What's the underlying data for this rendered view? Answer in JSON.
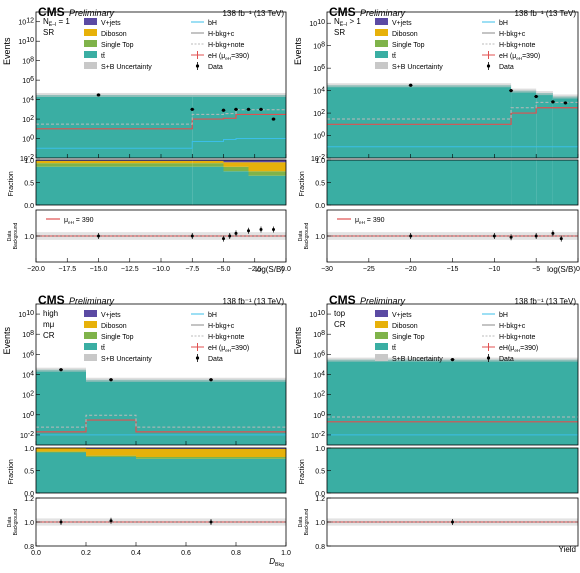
{
  "colors": {
    "ttbar": "#3aaea3",
    "vjets": "#5b4aa3",
    "diboson": "#e7b10a",
    "singletop": "#7fb34a",
    "uncert": "#c8c8c8",
    "bH": "#3bbfe8",
    "Hbkg_c": "#888888",
    "Hbkg_note": "#bbbbbb",
    "eH": "#e05050",
    "data": "#000000"
  },
  "chart_data": [
    {
      "id": "p1",
      "type": "bar",
      "cms": "CMS",
      "preliminary": "Preliminary",
      "lumi": "138 fb⁻¹ (13 TeV)",
      "category": "N",
      "category_sub": "E̅–l",
      "category_rest": " = 1",
      "region": "SR",
      "ylabel": "Events",
      "xlabel": "log(S/B)",
      "frac_label": "Fraction",
      "ratio_label_1": "Data",
      "ratio_label_2": "Background",
      "ratio_legend": "μ",
      "ratio_legend_sub": "eH",
      "ratio_legend_rest": " = 390",
      "xlim": [
        -20,
        0
      ],
      "xticks": [
        -20.0,
        -17.5,
        -15.0,
        -12.5,
        -10.0,
        -7.5,
        -5.0,
        -2.5,
        0.0
      ],
      "xtick_labels": [
        "−20.0",
        "−17.5",
        "−15.0",
        "−12.5",
        "−10.0",
        "−7.5",
        "−5.0",
        "−2.5",
        "0.0"
      ],
      "ytick_exps": [
        -2,
        0,
        2,
        4,
        6,
        8,
        10,
        12
      ],
      "ylog": [
        -2,
        13
      ],
      "bins": [
        -20,
        -7.5,
        -5,
        -4,
        -3,
        -2,
        -1,
        0
      ],
      "ttbar": [
        30000,
        30000,
        30000,
        30000,
        30000,
        30000,
        30000
      ],
      "bH": [
        0.1,
        0.5,
        0.8,
        1,
        1,
        1,
        1
      ],
      "eH": [
        10,
        100,
        120,
        300,
        300,
        300,
        300
      ],
      "data_x": [
        -15,
        -7.5,
        -5,
        -4,
        -3,
        -2,
        -1
      ],
      "data_y": [
        30000,
        1000,
        800,
        1000,
        1000,
        1000,
        100
      ],
      "frac_vjets": [
        0.02,
        0.02,
        0.05,
        0.05,
        0.05,
        0.05,
        0.05
      ],
      "frac_diboson": [
        0.05,
        0.05,
        0.1,
        0.1,
        0.2,
        0.2,
        0.2
      ],
      "frac_singletop": [
        0.08,
        0.08,
        0.1,
        0.1,
        0.1,
        0.1,
        0.1
      ],
      "ratio_ylim": [
        0.8,
        1.2
      ],
      "ratio_yticks": [
        1.0
      ],
      "ratio_ytick_labels": [
        "1.0"
      ],
      "ratio_data_x": [
        -15,
        -7.5,
        -5,
        -4.5,
        -4,
        -3,
        -2,
        -1
      ],
      "ratio_data_y": [
        1.0,
        1.0,
        0.98,
        1.0,
        1.02,
        1.04,
        1.05,
        1.05
      ],
      "legend": [
        {
          "label": "V+jets",
          "key": "vjets",
          "kind": "box"
        },
        {
          "label": "bH",
          "key": "bH",
          "kind": "line"
        },
        {
          "label": "Diboson",
          "key": "diboson",
          "kind": "box"
        },
        {
          "label": "H-bkg+c",
          "key": "Hbkg_c",
          "kind": "line"
        },
        {
          "label": "Single Top",
          "key": "singletop",
          "kind": "box"
        },
        {
          "label": "H-bkg+note",
          "key": "Hbkg_note",
          "kind": "dash"
        },
        {
          "label": "tt̄",
          "key": "ttbar",
          "kind": "box"
        },
        {
          "label": "eH (μ",
          "key": "eH",
          "kind": "errline",
          "sub": "eH",
          "rest": "=390)"
        },
        {
          "label": "S+B Uncertainty",
          "key": "uncert",
          "kind": "box"
        },
        {
          "label": "Data",
          "key": "data",
          "kind": "point"
        }
      ]
    },
    {
      "id": "p2",
      "type": "bar",
      "cms": "CMS",
      "preliminary": "Preliminary",
      "lumi": "138 fb⁻¹ (13 TeV)",
      "category": "N",
      "category_sub": "E̅–l",
      "category_rest": " > 1",
      "region": "SR",
      "ylabel": "Events",
      "xlabel": "log(S/B)",
      "frac_label": "Fraction",
      "ratio_label_1": "Data",
      "ratio_label_2": "Background",
      "ratio_legend": "μ",
      "ratio_legend_sub": "eH",
      "ratio_legend_rest": " = 390",
      "xlim": [
        -30,
        0
      ],
      "xticks": [
        -30,
        -25,
        -20,
        -15,
        -10,
        -5,
        0
      ],
      "xtick_labels": [
        "−30",
        "−25",
        "−20",
        "−15",
        "−10",
        "−5",
        "0"
      ],
      "ytick_exps": [
        -2,
        0,
        2,
        4,
        6,
        8,
        10
      ],
      "ylog": [
        -2,
        11
      ],
      "bins": [
        -30,
        -8,
        -5,
        -3,
        0
      ],
      "ttbar": [
        30000,
        10000,
        6000,
        3000
      ],
      "bH": [
        0.1,
        0.1,
        0.1,
        0.1
      ],
      "eH": [
        10,
        100,
        300,
        300
      ],
      "data_x": [
        -20,
        -8,
        -5,
        -3,
        -1.5
      ],
      "data_y": [
        30000,
        10000,
        3000,
        1000,
        800
      ],
      "frac_vjets": [
        0.0,
        0.0,
        0.0,
        0.0
      ],
      "frac_diboson": [
        0.0,
        0.0,
        0.0,
        0.0
      ],
      "frac_singletop": [
        0.0,
        0.0,
        0.0,
        0.0
      ],
      "ratio_ylim": [
        0.8,
        1.2
      ],
      "ratio_yticks": [
        1.0
      ],
      "ratio_ytick_labels": [
        "1.0"
      ],
      "ratio_data_x": [
        -20,
        -10,
        -8,
        -5,
        -3,
        -2
      ],
      "ratio_data_y": [
        1.0,
        1.0,
        0.99,
        1.0,
        1.02,
        0.98
      ],
      "legend": [
        {
          "label": "V+jets",
          "key": "vjets",
          "kind": "box"
        },
        {
          "label": "bH",
          "key": "bH",
          "kind": "line"
        },
        {
          "label": "Diboson",
          "key": "diboson",
          "kind": "box"
        },
        {
          "label": "H-bkg+c",
          "key": "Hbkg_c",
          "kind": "line"
        },
        {
          "label": "Single Top",
          "key": "singletop",
          "kind": "box"
        },
        {
          "label": "H-bkg+note",
          "key": "Hbkg_note",
          "kind": "dash"
        },
        {
          "label": "tt̄",
          "key": "ttbar",
          "kind": "box"
        },
        {
          "label": "eH (μ",
          "key": "eH",
          "kind": "errline",
          "sub": "eH",
          "rest": "=390)"
        },
        {
          "label": "S+B Uncertainty",
          "key": "uncert",
          "kind": "box"
        },
        {
          "label": "Data",
          "key": "data",
          "kind": "point"
        }
      ]
    },
    {
      "id": "p3",
      "type": "bar",
      "cms": "CMS",
      "preliminary": "Preliminary",
      "lumi": "138 fb⁻¹ (13 TeV)",
      "category": "high",
      "category_sub": "",
      "category_rest": "",
      "region": "mμ",
      "region2": "CR",
      "ylabel": "Events",
      "xlabel": "D",
      "xlabel_sub": "Bkg",
      "frac_label": "Fraction",
      "ratio_label_1": "Data",
      "ratio_label_2": "Background",
      "xlim": [
        0,
        1
      ],
      "xticks": [
        0,
        0.2,
        0.4,
        0.6,
        0.8,
        1.0
      ],
      "xtick_labels": [
        "0.0",
        "0.2",
        "0.4",
        "0.6",
        "0.8",
        "1.0"
      ],
      "ytick_exps": [
        -2,
        0,
        2,
        4,
        6,
        8,
        10
      ],
      "ylog": [
        -3,
        11
      ],
      "bins": [
        0,
        0.2,
        0.4,
        1.0
      ],
      "ttbar": [
        30000,
        3000,
        3000
      ],
      "bH": [
        0.01,
        0.01,
        0.01
      ],
      "eH": [
        0.02,
        0.3,
        0.02
      ],
      "data_x": [
        0.1,
        0.3,
        0.7
      ],
      "data_y": [
        30000,
        3000,
        3000
      ],
      "frac_vjets": [
        0.0,
        0.02,
        0.02
      ],
      "frac_diboson": [
        0.08,
        0.15,
        0.18
      ],
      "frac_singletop": [
        0.02,
        0.03,
        0.04
      ],
      "ratio_ylim": [
        0.8,
        1.2
      ],
      "ratio_yticks": [
        0.8,
        1.0,
        1.2
      ],
      "ratio_ytick_labels": [
        "0.8",
        "1.0",
        "1.2"
      ],
      "ratio_data_x": [
        0.1,
        0.3,
        0.7
      ],
      "ratio_data_y": [
        1.0,
        1.01,
        1.0
      ],
      "legend": [
        {
          "label": "V+jets",
          "key": "vjets",
          "kind": "box"
        },
        {
          "label": "bH",
          "key": "bH",
          "kind": "line"
        },
        {
          "label": "Diboson",
          "key": "diboson",
          "kind": "box"
        },
        {
          "label": "H-bkg+c",
          "key": "Hbkg_c",
          "kind": "line"
        },
        {
          "label": "Single Top",
          "key": "singletop",
          "kind": "box"
        },
        {
          "label": "H-bkg+note",
          "key": "Hbkg_note",
          "kind": "dash"
        },
        {
          "label": "tt̄",
          "key": "ttbar",
          "kind": "box"
        },
        {
          "label": "eH (μ",
          "key": "eH",
          "kind": "errline",
          "sub": "eH",
          "rest": "=390)"
        },
        {
          "label": "S+B Uncertainty",
          "key": "uncert",
          "kind": "box"
        },
        {
          "label": "Data",
          "key": "data",
          "kind": "point"
        }
      ]
    },
    {
      "id": "p4",
      "type": "bar",
      "cms": "CMS",
      "preliminary": "Preliminary",
      "lumi": "138 fb⁻¹ (13 TeV)",
      "category": "top",
      "category_sub": "",
      "category_rest": "",
      "region": "CR",
      "ylabel": "Events",
      "xlabel": "Yield",
      "frac_label": "Fraction",
      "ratio_label_1": "Data",
      "ratio_label_2": "Background",
      "xlim": [
        0,
        1
      ],
      "xticks": [],
      "xtick_labels": [],
      "ytick_exps": [
        -2,
        0,
        2,
        4,
        6,
        8,
        10
      ],
      "ylog": [
        -3,
        11
      ],
      "bins": [
        0,
        1
      ],
      "ttbar": [
        300000
      ],
      "bH": [
        0.01
      ],
      "eH": [
        0.2
      ],
      "data_x": [
        0.5
      ],
      "data_y": [
        300000
      ],
      "frac_vjets": [
        0.0
      ],
      "frac_diboson": [
        0.0
      ],
      "frac_singletop": [
        0.01
      ],
      "ratio_ylim": [
        0.8,
        1.2
      ],
      "ratio_yticks": [
        0.8,
        1.0,
        1.2
      ],
      "ratio_ytick_labels": [
        "0.8",
        "1.0",
        "1.2"
      ],
      "ratio_data_x": [
        0.5
      ],
      "ratio_data_y": [
        1.0
      ],
      "legend": [
        {
          "label": "V+jets",
          "key": "vjets",
          "kind": "box"
        },
        {
          "label": "bH",
          "key": "bH",
          "kind": "line"
        },
        {
          "label": "Diboson",
          "key": "diboson",
          "kind": "box"
        },
        {
          "label": "H-bkg+c",
          "key": "Hbkg_c",
          "kind": "line"
        },
        {
          "label": "Single Top",
          "key": "singletop",
          "kind": "box"
        },
        {
          "label": "H-bkg+note",
          "key": "Hbkg_note",
          "kind": "dash"
        },
        {
          "label": "tt̄",
          "key": "ttbar",
          "kind": "box"
        },
        {
          "label": "eH(μ",
          "key": "eH",
          "kind": "errline",
          "sub": "eH",
          "rest": "=390)"
        },
        {
          "label": "S+B Uncertainty",
          "key": "uncert",
          "kind": "box"
        },
        {
          "label": "Data",
          "key": "data",
          "kind": "point"
        }
      ]
    }
  ]
}
